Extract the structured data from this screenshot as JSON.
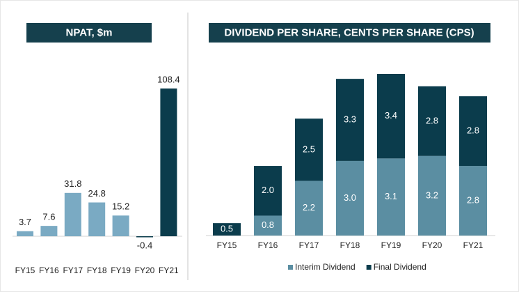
{
  "chart_data": [
    {
      "type": "bar",
      "title": "NPAT, $m",
      "categories": [
        "FY15",
        "FY16",
        "FY17",
        "FY18",
        "FY19",
        "FY20",
        "FY21"
      ],
      "values": [
        3.7,
        7.6,
        31.8,
        24.8,
        15.2,
        -0.4,
        108.4
      ],
      "colors": [
        "#7aaac3",
        "#7aaac3",
        "#7aaac3",
        "#7aaac3",
        "#7aaac3",
        "#0b3c4c",
        "#0b3c4c"
      ]
    },
    {
      "type": "stacked-bar",
      "title": "DIVIDEND PER SHARE, CENTS PER SHARE (CPS)",
      "categories": [
        "FY15",
        "FY16",
        "FY17",
        "FY18",
        "FY19",
        "FY20",
        "FY21"
      ],
      "series": [
        {
          "name": "Interim Dividend",
          "color": "#5b8ea2",
          "values": [
            null,
            0.8,
            2.2,
            3.0,
            3.1,
            3.2,
            2.8
          ],
          "value_labels": [
            null,
            "0.8",
            "2.2",
            "3.0",
            "3.1",
            "3.2",
            "2.8"
          ]
        },
        {
          "name": "Final Dividend",
          "color": "#0b3c4c",
          "values": [
            0.5,
            2.0,
            2.5,
            3.3,
            3.4,
            2.8,
            2.8
          ],
          "value_labels": [
            "0.5",
            "2.0",
            "2.5",
            "3.3",
            "3.4",
            "2.8",
            "2.8"
          ]
        }
      ],
      "legend": "bottom"
    }
  ]
}
